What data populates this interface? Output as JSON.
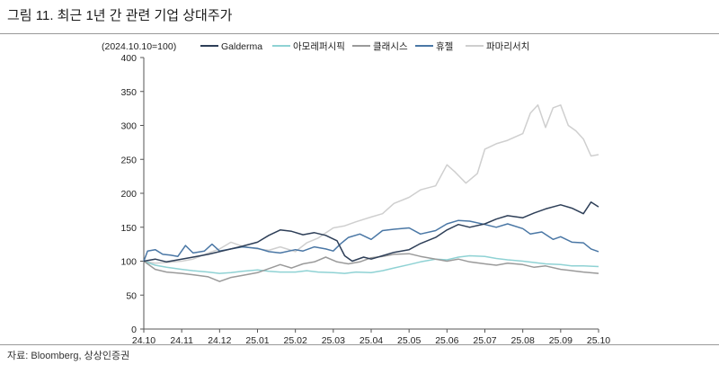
{
  "figure": {
    "title": "그림 11. 최근 1년 간 관련 기업 상대주가",
    "source": "자료: Bloomberg, 상상인증권"
  },
  "chart_data": {
    "type": "line",
    "unit_label": "(2024.10.10=100)",
    "title": "",
    "xlabel": "",
    "ylabel": "",
    "ylim": [
      0,
      400
    ],
    "yticks": [
      0,
      50,
      100,
      150,
      200,
      250,
      300,
      350,
      400
    ],
    "x_tick_labels": [
      "24.10",
      "24.11",
      "24.12",
      "25.01",
      "25.02",
      "25.03",
      "25.04",
      "25.05",
      "25.06",
      "25.07",
      "25.08",
      "25.09",
      "25.10"
    ],
    "grid": false,
    "legend_position": "top",
    "series": [
      {
        "name": "Galderma",
        "color": "#2e3f58",
        "points": [
          [
            0,
            100
          ],
          [
            0.3,
            103
          ],
          [
            0.6,
            99
          ],
          [
            1,
            103
          ],
          [
            1.3,
            106
          ],
          [
            1.7,
            110
          ],
          [
            2,
            114
          ],
          [
            2.3,
            118
          ],
          [
            2.6,
            122
          ],
          [
            3,
            128
          ],
          [
            3.3,
            138
          ],
          [
            3.6,
            146
          ],
          [
            3.9,
            144
          ],
          [
            4.2,
            139
          ],
          [
            4.5,
            142
          ],
          [
            4.8,
            138
          ],
          [
            5.1,
            130
          ],
          [
            5.3,
            108
          ],
          [
            5.5,
            100
          ],
          [
            5.8,
            106
          ],
          [
            6,
            103
          ],
          [
            6.3,
            108
          ],
          [
            6.6,
            113
          ],
          [
            7,
            117
          ],
          [
            7.3,
            126
          ],
          [
            7.7,
            135
          ],
          [
            8,
            146
          ],
          [
            8.3,
            154
          ],
          [
            8.6,
            150
          ],
          [
            9,
            155
          ],
          [
            9.3,
            162
          ],
          [
            9.6,
            167
          ],
          [
            10,
            164
          ],
          [
            10.3,
            171
          ],
          [
            10.6,
            177
          ],
          [
            11,
            183
          ],
          [
            11.3,
            178
          ],
          [
            11.6,
            170
          ],
          [
            11.8,
            187
          ],
          [
            12,
            180
          ]
        ]
      },
      {
        "name": "아모레퍼시픽",
        "color": "#8fd2d4",
        "points": [
          [
            0,
            100
          ],
          [
            0.3,
            94
          ],
          [
            0.6,
            91
          ],
          [
            1,
            88
          ],
          [
            1.3,
            86
          ],
          [
            1.7,
            84
          ],
          [
            2,
            82
          ],
          [
            2.3,
            83
          ],
          [
            2.6,
            85
          ],
          [
            3,
            87
          ],
          [
            3.3,
            85
          ],
          [
            3.6,
            84
          ],
          [
            4,
            84
          ],
          [
            4.3,
            86
          ],
          [
            4.6,
            84
          ],
          [
            5,
            83
          ],
          [
            5.3,
            82
          ],
          [
            5.6,
            84
          ],
          [
            6,
            83
          ],
          [
            6.3,
            86
          ],
          [
            6.6,
            90
          ],
          [
            7,
            95
          ],
          [
            7.3,
            99
          ],
          [
            7.7,
            103
          ],
          [
            8,
            102
          ],
          [
            8.3,
            106
          ],
          [
            8.6,
            108
          ],
          [
            9,
            107
          ],
          [
            9.3,
            104
          ],
          [
            9.6,
            102
          ],
          [
            10,
            100
          ],
          [
            10.3,
            98
          ],
          [
            10.6,
            96
          ],
          [
            11,
            95
          ],
          [
            11.3,
            93
          ],
          [
            11.6,
            93
          ],
          [
            12,
            92
          ]
        ]
      },
      {
        "name": "클래시스",
        "color": "#9a9a9a",
        "points": [
          [
            0,
            100
          ],
          [
            0.3,
            88
          ],
          [
            0.6,
            84
          ],
          [
            1,
            82
          ],
          [
            1.3,
            80
          ],
          [
            1.7,
            77
          ],
          [
            2,
            70
          ],
          [
            2.3,
            76
          ],
          [
            2.6,
            79
          ],
          [
            3,
            83
          ],
          [
            3.3,
            89
          ],
          [
            3.6,
            95
          ],
          [
            3.9,
            90
          ],
          [
            4.2,
            96
          ],
          [
            4.5,
            99
          ],
          [
            4.8,
            106
          ],
          [
            5.1,
            99
          ],
          [
            5.4,
            96
          ],
          [
            5.7,
            99
          ],
          [
            6,
            105
          ],
          [
            6.3,
            107
          ],
          [
            6.6,
            110
          ],
          [
            7,
            111
          ],
          [
            7.3,
            107
          ],
          [
            7.7,
            103
          ],
          [
            8,
            100
          ],
          [
            8.3,
            103
          ],
          [
            8.6,
            99
          ],
          [
            9,
            96
          ],
          [
            9.3,
            94
          ],
          [
            9.6,
            97
          ],
          [
            10,
            95
          ],
          [
            10.3,
            91
          ],
          [
            10.6,
            93
          ],
          [
            11,
            88
          ],
          [
            11.3,
            86
          ],
          [
            11.6,
            84
          ],
          [
            12,
            82
          ]
        ]
      },
      {
        "name": "휴젤",
        "color": "#4a77a5",
        "points": [
          [
            0,
            100
          ],
          [
            0.1,
            115
          ],
          [
            0.3,
            117
          ],
          [
            0.5,
            110
          ],
          [
            0.7,
            109
          ],
          [
            0.9,
            107
          ],
          [
            1.1,
            123
          ],
          [
            1.3,
            112
          ],
          [
            1.6,
            115
          ],
          [
            1.8,
            125
          ],
          [
            2,
            115
          ],
          [
            2.3,
            118
          ],
          [
            2.6,
            121
          ],
          [
            3,
            119
          ],
          [
            3.3,
            114
          ],
          [
            3.6,
            112
          ],
          [
            4,
            117
          ],
          [
            4.2,
            115
          ],
          [
            4.5,
            121
          ],
          [
            4.8,
            118
          ],
          [
            5,
            115
          ],
          [
            5.2,
            126
          ],
          [
            5.4,
            135
          ],
          [
            5.7,
            140
          ],
          [
            6,
            132
          ],
          [
            6.3,
            145
          ],
          [
            6.6,
            147
          ],
          [
            7,
            149
          ],
          [
            7.3,
            140
          ],
          [
            7.7,
            145
          ],
          [
            8,
            155
          ],
          [
            8.3,
            160
          ],
          [
            8.6,
            159
          ],
          [
            9,
            154
          ],
          [
            9.3,
            150
          ],
          [
            9.6,
            155
          ],
          [
            10,
            148
          ],
          [
            10.2,
            140
          ],
          [
            10.5,
            143
          ],
          [
            10.8,
            132
          ],
          [
            11,
            136
          ],
          [
            11.3,
            128
          ],
          [
            11.6,
            127
          ],
          [
            11.8,
            118
          ],
          [
            12,
            114
          ]
        ]
      },
      {
        "name": "파마리서치",
        "color": "#cfcfcf",
        "points": [
          [
            0,
            100
          ],
          [
            0.3,
            97
          ],
          [
            0.6,
            98
          ],
          [
            1,
            100
          ],
          [
            1.3,
            103
          ],
          [
            1.7,
            112
          ],
          [
            2,
            118
          ],
          [
            2.3,
            128
          ],
          [
            2.6,
            122
          ],
          [
            3,
            118
          ],
          [
            3.3,
            116
          ],
          [
            3.6,
            121
          ],
          [
            4,
            114
          ],
          [
            4.3,
            127
          ],
          [
            4.6,
            134
          ],
          [
            5,
            149
          ],
          [
            5.3,
            152
          ],
          [
            5.6,
            158
          ],
          [
            6,
            165
          ],
          [
            6.3,
            170
          ],
          [
            6.6,
            185
          ],
          [
            7,
            194
          ],
          [
            7.3,
            205
          ],
          [
            7.7,
            211
          ],
          [
            8,
            242
          ],
          [
            8.2,
            232
          ],
          [
            8.5,
            215
          ],
          [
            8.8,
            229
          ],
          [
            9,
            265
          ],
          [
            9.3,
            273
          ],
          [
            9.6,
            278
          ],
          [
            10,
            288
          ],
          [
            10.2,
            318
          ],
          [
            10.4,
            330
          ],
          [
            10.6,
            297
          ],
          [
            10.8,
            326
          ],
          [
            11,
            330
          ],
          [
            11.2,
            300
          ],
          [
            11.4,
            292
          ],
          [
            11.6,
            280
          ],
          [
            11.8,
            255
          ],
          [
            12,
            257
          ]
        ]
      }
    ]
  }
}
